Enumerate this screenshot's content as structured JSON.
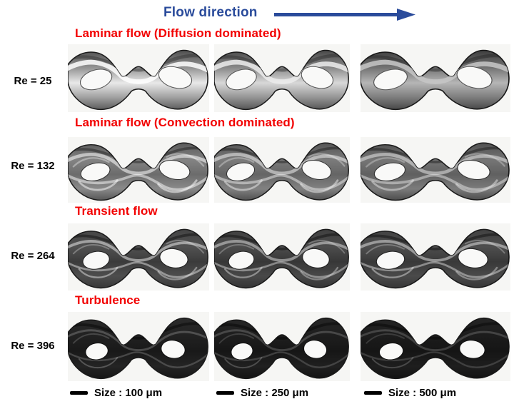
{
  "figure": {
    "header": {
      "flow_direction_label": "Flow direction",
      "arrow_icon": "flow-direction-arrow-icon"
    },
    "colors": {
      "accent_blue": "#2a4b9b",
      "accent_red": "#f20000",
      "scale_bar_black": "#000000"
    },
    "rows": [
      {
        "re_label": "Re = 25",
        "regime_label": "Laminar flow (Diffusion dominated)",
        "style": "laminar_diffusion"
      },
      {
        "re_label": "Re = 132",
        "regime_label": "Laminar flow (Convection dominated)",
        "style": "laminar_convection"
      },
      {
        "re_label": "Re = 264",
        "regime_label": "Transient flow",
        "style": "transient"
      },
      {
        "re_label": "Re = 396",
        "regime_label": "Turbulence",
        "style": "turbulence"
      }
    ],
    "columns": [
      {
        "scale_label": "Size : 100 μm"
      },
      {
        "scale_label": "Size : 250 μm"
      },
      {
        "scale_label": "Size : 500 μm"
      }
    ]
  }
}
